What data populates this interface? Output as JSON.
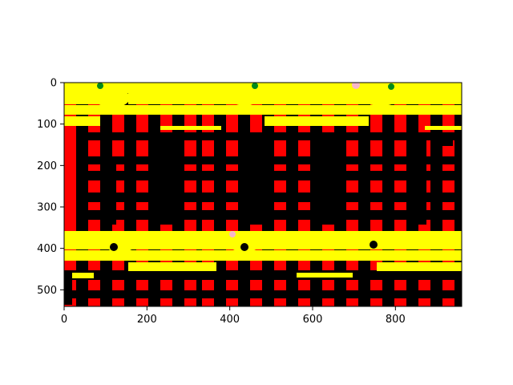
{
  "figure": {
    "colors": {
      "background": "#ffffff",
      "red": "#ff0000",
      "yellow": "#ffff00",
      "black": "#000000",
      "green": "#008a1a",
      "pink": "#f7b6c8"
    }
  },
  "axes": {
    "x_ticks": [
      {
        "value": 0,
        "label": "0"
      },
      {
        "value": 200,
        "label": "200"
      },
      {
        "value": 400,
        "label": "400"
      },
      {
        "value": 600,
        "label": "600"
      },
      {
        "value": 800,
        "label": "800"
      }
    ],
    "y_ticks": [
      {
        "value": 0,
        "label": "0"
      },
      {
        "value": 100,
        "label": "100"
      },
      {
        "value": 200,
        "label": "200"
      },
      {
        "value": 300,
        "label": "300"
      },
      {
        "value": 400,
        "label": "400"
      },
      {
        "value": 500,
        "label": "500"
      }
    ],
    "x_range": [
      0,
      960
    ],
    "y_range": [
      0,
      540
    ],
    "y_inverted": true,
    "grid": false
  }
}
